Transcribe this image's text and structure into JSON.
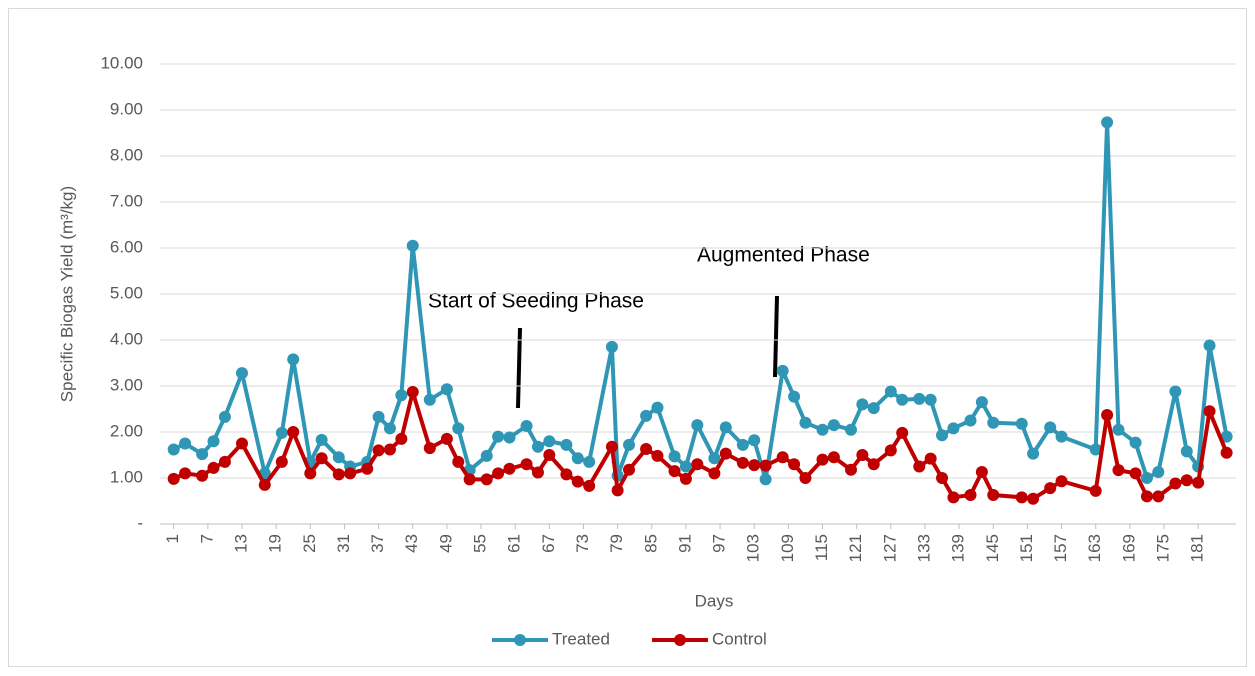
{
  "chart_data": {
    "type": "line",
    "y_axis_label": "Specific Biogas Yield (m³/kg)",
    "x_axis_label": "Days",
    "annotations": [
      "Start of Seeding Phase",
      "Augmented Phase"
    ],
    "x": [
      1,
      3,
      6,
      8,
      10,
      13,
      17,
      20,
      22,
      25,
      27,
      30,
      32,
      35,
      37,
      39,
      41,
      43,
      46,
      49,
      51,
      53,
      56,
      58,
      60,
      63,
      65,
      67,
      70,
      72,
      74,
      78,
      79,
      81,
      84,
      86,
      89,
      91,
      93,
      96,
      98,
      101,
      103,
      105,
      108,
      110,
      112,
      115,
      117,
      120,
      122,
      124,
      127,
      129,
      132,
      134,
      136,
      138,
      141,
      143,
      145,
      150,
      152,
      155,
      157,
      163,
      165,
      167,
      170,
      172,
      174,
      177,
      179,
      181,
      183,
      186
    ],
    "series": [
      {
        "name": "Treated",
        "color": "#2f97b5",
        "values": [
          1.62,
          1.75,
          1.52,
          1.8,
          2.33,
          3.28,
          1.1,
          1.98,
          3.58,
          1.35,
          1.83,
          1.45,
          1.25,
          1.35,
          2.33,
          2.08,
          2.8,
          6.05,
          2.7,
          2.93,
          2.08,
          1.17,
          1.48,
          1.9,
          1.88,
          2.13,
          1.68,
          1.8,
          1.72,
          1.43,
          1.35,
          3.85,
          1.05,
          1.72,
          2.35,
          2.53,
          1.47,
          1.25,
          2.15,
          1.43,
          2.1,
          1.72,
          1.82,
          0.97,
          3.33,
          2.77,
          2.2,
          2.05,
          2.15,
          2.05,
          2.6,
          2.52,
          2.88,
          2.7,
          2.72,
          2.7,
          1.93,
          2.08,
          2.25,
          2.65,
          2.2,
          2.18,
          1.53,
          2.1,
          1.9,
          1.62,
          8.73,
          2.05,
          1.77,
          1.0,
          1.13,
          2.88,
          1.58,
          1.25,
          3.88,
          1.9
        ]
      },
      {
        "name": "Control",
        "color": "#c00000",
        "values": [
          0.98,
          1.1,
          1.05,
          1.22,
          1.35,
          1.75,
          0.85,
          1.35,
          2.0,
          1.1,
          1.43,
          1.08,
          1.1,
          1.2,
          1.6,
          1.62,
          1.85,
          2.87,
          1.65,
          1.85,
          1.35,
          0.97,
          0.97,
          1.1,
          1.2,
          1.3,
          1.12,
          1.5,
          1.08,
          0.92,
          0.83,
          1.68,
          0.73,
          1.18,
          1.63,
          1.48,
          1.15,
          0.98,
          1.3,
          1.1,
          1.53,
          1.33,
          1.28,
          1.27,
          1.45,
          1.3,
          1.0,
          1.4,
          1.45,
          1.18,
          1.5,
          1.3,
          1.6,
          1.98,
          1.25,
          1.42,
          1.0,
          0.58,
          0.63,
          1.13,
          0.63,
          0.58,
          0.55,
          0.78,
          0.93,
          0.72,
          2.37,
          1.17,
          1.1,
          0.6,
          0.6,
          0.88,
          0.95,
          0.9,
          2.45,
          1.55
        ]
      }
    ],
    "xlim": [
      0,
      188
    ],
    "xticks": [
      1,
      7,
      13,
      19,
      25,
      31,
      37,
      43,
      49,
      55,
      61,
      67,
      73,
      79,
      85,
      91,
      97,
      103,
      109,
      115,
      121,
      127,
      133,
      139,
      145,
      151,
      157,
      163,
      169,
      175,
      181
    ],
    "ylim": [
      0,
      10
    ],
    "yticks": [
      {
        "value": 0,
        "label": "-"
      },
      {
        "value": 1,
        "label": "1.00"
      },
      {
        "value": 2,
        "label": "2.00"
      },
      {
        "value": 3,
        "label": "3.00"
      },
      {
        "value": 4,
        "label": "4.00"
      },
      {
        "value": 5,
        "label": "5.00"
      },
      {
        "value": 6,
        "label": "6.00"
      },
      {
        "value": 7,
        "label": "7.00"
      },
      {
        "value": 8,
        "label": "8.00"
      },
      {
        "value": 9,
        "label": "9.00"
      },
      {
        "value": 10,
        "label": "10.00"
      }
    ],
    "grid": true,
    "legend": "bottom"
  }
}
